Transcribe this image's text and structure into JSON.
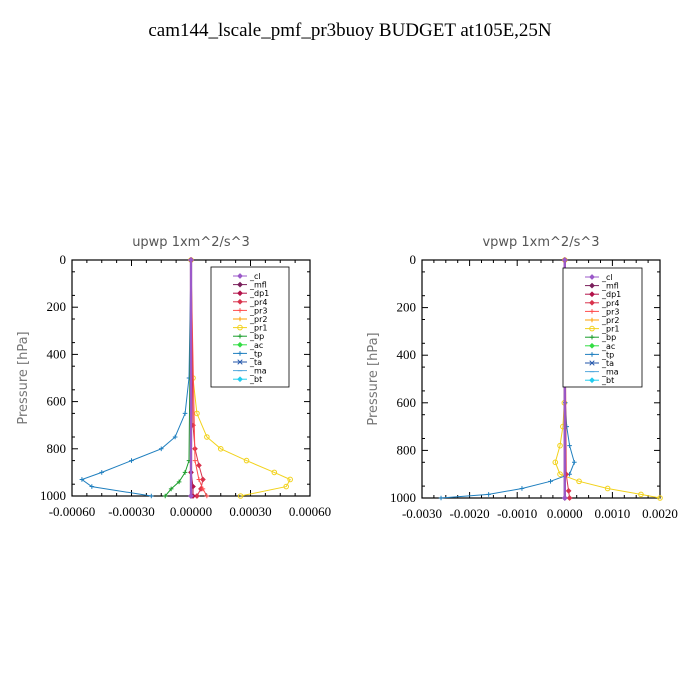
{
  "page_title": "cam144_lscale_pmf_pr3buoy  BUDGET at105E,25N",
  "y_axis_label": "Pressure [hPa]",
  "legend": [
    {
      "name": "_cl",
      "color": "#9b59c9",
      "marker": "diamond"
    },
    {
      "name": "_mfl",
      "color": "#7a1f5c",
      "marker": "diamond"
    },
    {
      "name": "_dp1",
      "color": "#b3134a",
      "marker": "diamond"
    },
    {
      "name": "_pr4",
      "color": "#d9334d",
      "marker": "diamond"
    },
    {
      "name": "_pr3",
      "color": "#ff4d4d",
      "marker": "plus"
    },
    {
      "name": "_pr2",
      "color": "#ffa000",
      "marker": "plus"
    },
    {
      "name": "_pr1",
      "color": "#f2d21b",
      "marker": "circle"
    },
    {
      "name": "_bp",
      "color": "#1a9e2a",
      "marker": "plus"
    },
    {
      "name": "_ac",
      "color": "#33dd44",
      "marker": "diamond"
    },
    {
      "name": "_tp",
      "color": "#1f7fbf",
      "marker": "plus"
    },
    {
      "name": "_ta",
      "color": "#2255aa",
      "marker": "x"
    },
    {
      "name": "_ma",
      "color": "#55aadd",
      "marker": "dash"
    },
    {
      "name": "_bt",
      "color": "#22ccee",
      "marker": "diamond"
    }
  ],
  "chart_data": [
    {
      "type": "line",
      "title": "upwp   1xm^2/s^3",
      "ylabel": "Pressure [hPa]",
      "xlim": [
        -0.0006,
        0.0006
      ],
      "ylim": [
        1000,
        0
      ],
      "xticks": [
        -0.0006,
        -0.0003,
        0,
        0.0003,
        0.0006
      ],
      "xtick_labels": [
        "-0.00060",
        "-0.00030",
        "0.00000",
        "0.00030",
        "0.00060"
      ],
      "yticks": [
        0,
        200,
        400,
        600,
        800,
        1000
      ],
      "ytick_labels": [
        "0",
        "200",
        "400",
        "600",
        "800",
        "1000"
      ],
      "grid": false,
      "legend_position": "top-right",
      "series": [
        {
          "name": "_pr1",
          "color": "#f2d21b",
          "x": [
            0,
            1e-05,
            3e-05,
            8e-05,
            0.00015,
            0.00028,
            0.00042,
            0.0005,
            0.00048,
            0.00025
          ],
          "y": [
            0,
            500,
            650,
            750,
            800,
            850,
            900,
            930,
            960,
            1000
          ]
        },
        {
          "name": "_tp",
          "color": "#1f7fbf",
          "x": [
            0,
            -1e-05,
            -3e-05,
            -8e-05,
            -0.00015,
            -0.0003,
            -0.00045,
            -0.00055,
            -0.0005,
            -0.0002
          ],
          "y": [
            0,
            500,
            650,
            750,
            800,
            850,
            900,
            930,
            960,
            1000
          ]
        },
        {
          "name": "_pr4",
          "color": "#d9334d",
          "x": [
            0,
            1e-05,
            2e-05,
            4e-05,
            6e-05,
            5e-05,
            3e-05
          ],
          "y": [
            0,
            700,
            800,
            870,
            930,
            970,
            1000
          ]
        },
        {
          "name": "_pr3",
          "color": "#ff4d4d",
          "x": [
            0,
            2e-05,
            4e-05,
            6e-05,
            8e-05
          ],
          "y": [
            0,
            850,
            930,
            970,
            1000
          ]
        },
        {
          "name": "_bp",
          "color": "#1a9e2a",
          "x": [
            0,
            -1e-05,
            -3e-05,
            -6e-05,
            -0.0001,
            -0.00013
          ],
          "y": [
            0,
            850,
            900,
            940,
            970,
            1000
          ]
        },
        {
          "name": "_dp1",
          "color": "#b3134a",
          "x": [
            0,
            0,
            1e-05,
            1e-05
          ],
          "y": [
            0,
            900,
            960,
            1000
          ]
        },
        {
          "name": "_mfl",
          "color": "#7a1f5c",
          "x": [
            0,
            0
          ],
          "y": [
            0,
            1000
          ]
        },
        {
          "name": "_cl",
          "color": "#9b59c9",
          "x": [
            0,
            0
          ],
          "y": [
            0,
            1000
          ]
        }
      ]
    },
    {
      "type": "line",
      "title": "vpwp   1xm^2/s^3",
      "ylabel": "Pressure [hPa]",
      "xlim": [
        -0.003,
        0.002
      ],
      "ylim": [
        1000,
        0
      ],
      "xticks": [
        -0.003,
        -0.002,
        -0.001,
        0,
        0.001,
        0.002
      ],
      "xtick_labels": [
        "-0.0030",
        "-0.0020",
        "-0.0010",
        "0.0000",
        "0.0010",
        "0.0020"
      ],
      "yticks": [
        0,
        200,
        400,
        600,
        800,
        1000
      ],
      "ytick_labels": [
        "0",
        "200",
        "400",
        "600",
        "800",
        "1000"
      ],
      "grid": false,
      "legend_position": "top-right",
      "series": [
        {
          "name": "_pr1",
          "color": "#f2d21b",
          "x": [
            0,
            -1e-05,
            -4e-05,
            -0.0001,
            -0.0002,
            -0.0001,
            0.0003,
            0.0009,
            0.0016,
            0.002
          ],
          "y": [
            0,
            600,
            700,
            780,
            850,
            900,
            930,
            960,
            985,
            1000
          ]
        },
        {
          "name": "_tp",
          "color": "#1f7fbf",
          "x": [
            0,
            1e-05,
            4e-05,
            0.0001,
            0.0002,
            0.0001,
            -0.0003,
            -0.0009,
            -0.0016,
            -0.0026
          ],
          "y": [
            0,
            600,
            700,
            780,
            850,
            900,
            930,
            960,
            985,
            1000
          ]
        },
        {
          "name": "_pr4",
          "color": "#d9334d",
          "x": [
            0,
            3e-05,
            8e-05,
            0.0001
          ],
          "y": [
            0,
            900,
            970,
            1000
          ]
        },
        {
          "name": "_mfl",
          "color": "#7a1f5c",
          "x": [
            0,
            0
          ],
          "y": [
            0,
            1000
          ]
        },
        {
          "name": "_cl",
          "color": "#9b59c9",
          "x": [
            0,
            0
          ],
          "y": [
            0,
            1000
          ]
        }
      ]
    }
  ]
}
